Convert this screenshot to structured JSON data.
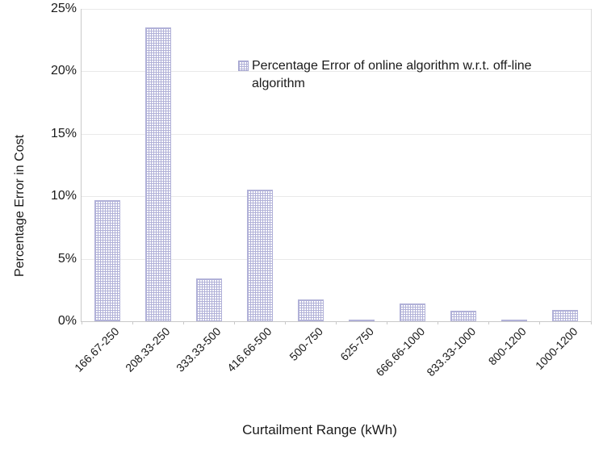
{
  "chart_data": {
    "type": "bar",
    "title": "",
    "categories": [
      "166.67-250",
      "208.33-250",
      "333.33-500",
      "416.66-500",
      "500-750",
      "625-750",
      "666.66-1000",
      "833.33-1000",
      "800-1200",
      "1000-1200"
    ],
    "series": [
      {
        "name": "Percentage Error of online algorithm w.r.t. off-line algorithm",
        "values": [
          9.7,
          23.5,
          3.4,
          10.5,
          1.75,
          0.15,
          1.4,
          0.85,
          0.1,
          0.9
        ]
      }
    ],
    "xlabel": "Curtailment Range (kWh)",
    "ylabel": "Percentage Error in Cost",
    "ylim": [
      0,
      25
    ],
    "ytick_labels": [
      "0%",
      "5%",
      "10%",
      "15%",
      "20%",
      "25%"
    ],
    "grid": "horizontal",
    "legend_position": "inside-top-right",
    "bar_pattern": "grid-hatch",
    "colors": {
      "bar_line": "#b1b1d8",
      "bar_background": "#ffffff",
      "gridline": "#e9e9e9",
      "axis": "#c9c9c9",
      "text": "#1a1a1a"
    }
  }
}
